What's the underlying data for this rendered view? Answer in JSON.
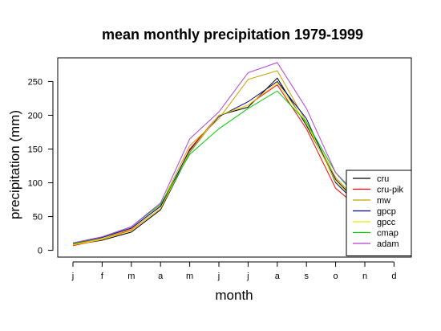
{
  "chart_data": {
    "type": "line",
    "title": "mean monthly precipitation 1979-1999",
    "xlabel": "month",
    "ylabel": "precipitation (mm)",
    "categories": [
      "j",
      "f",
      "m",
      "a",
      "m",
      "j",
      "j",
      "a",
      "s",
      "o",
      "n",
      "d"
    ],
    "yticks": [
      0,
      50,
      100,
      150,
      200,
      250
    ],
    "ylim": [
      -10,
      285
    ],
    "grid": false,
    "legend_position": "bottom-right",
    "series": [
      {
        "name": "cru",
        "color": "#000000",
        "values": [
          8,
          15,
          27,
          60,
          145,
          200,
          212,
          255,
          185,
          105,
          60,
          40
        ]
      },
      {
        "name": "cru-pik",
        "color": "#ff0000",
        "values": [
          7,
          16,
          30,
          62,
          150,
          200,
          215,
          245,
          180,
          92,
          55,
          35
        ]
      },
      {
        "name": "mw",
        "color": "#c8a000",
        "values": [
          9,
          17,
          32,
          66,
          155,
          195,
          253,
          266,
          190,
          108,
          62,
          42
        ]
      },
      {
        "name": "gpcp",
        "color": "#00008b",
        "values": [
          10,
          19,
          33,
          65,
          148,
          198,
          220,
          250,
          195,
          100,
          58,
          38
        ]
      },
      {
        "name": "gpcc",
        "color": "#e6e600",
        "values": [
          8,
          16,
          29,
          62,
          146,
          200,
          215,
          248,
          188,
          102,
          60,
          40
        ]
      },
      {
        "name": "cmap",
        "color": "#00cc00",
        "values": [
          10,
          20,
          35,
          68,
          142,
          180,
          210,
          236,
          190,
          115,
          65,
          45
        ]
      },
      {
        "name": "adam",
        "color": "#b040d0",
        "values": [
          11,
          20,
          35,
          70,
          165,
          205,
          263,
          278,
          210,
          115,
          70,
          50
        ]
      }
    ]
  }
}
